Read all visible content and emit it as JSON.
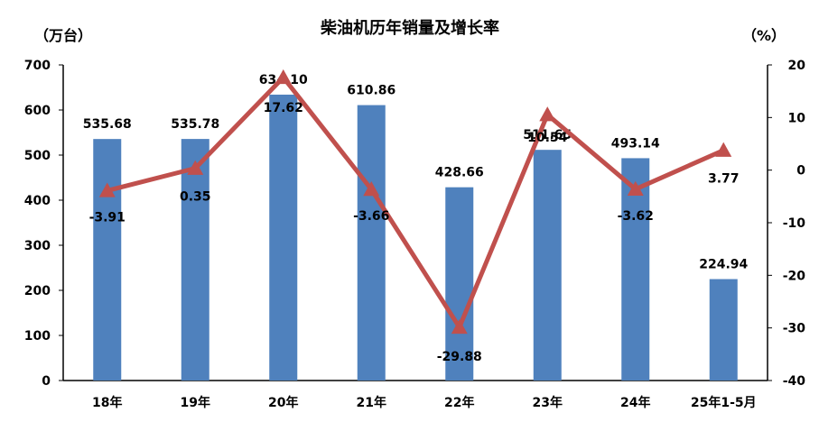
{
  "chart_data": {
    "type": "bar",
    "title": "柴油机历年销量及增长率",
    "y_left_unit": "（万台）",
    "y_right_unit": "（%）",
    "categories": [
      "18年",
      "19年",
      "20年",
      "21年",
      "22年",
      "23年",
      "24年",
      "25年1-5月"
    ],
    "series": [
      {
        "type": "bar",
        "axis": "left",
        "color": "#4F81BD",
        "values": [
          535.68,
          535.78,
          634.1,
          610.86,
          428.66,
          511.65,
          493.14,
          224.94
        ],
        "labels": [
          "535.68",
          "535.78",
          "634.10",
          "610.86",
          "428.66",
          "511.65",
          "493.14",
          "224.94"
        ]
      },
      {
        "type": "line",
        "axis": "right",
        "color": "#C0504D",
        "marker": "triangle",
        "values": [
          -3.91,
          0.35,
          17.62,
          -3.66,
          -29.88,
          10.54,
          -3.62,
          3.77
        ],
        "labels": [
          "-3.91",
          "0.35",
          "17.62",
          "-3.66",
          "-29.88",
          "10.54",
          "-3.62",
          "3.77"
        ]
      }
    ],
    "y_left": {
      "min": 0,
      "max": 700,
      "ticks": [
        "0",
        "100",
        "200",
        "300",
        "400",
        "500",
        "600",
        "700"
      ]
    },
    "y_right": {
      "min": -40,
      "max": 20,
      "ticks": [
        "-40",
        "-30",
        "-20",
        "-10",
        "0",
        "10",
        "20"
      ]
    },
    "grid": false,
    "legend": "none"
  }
}
